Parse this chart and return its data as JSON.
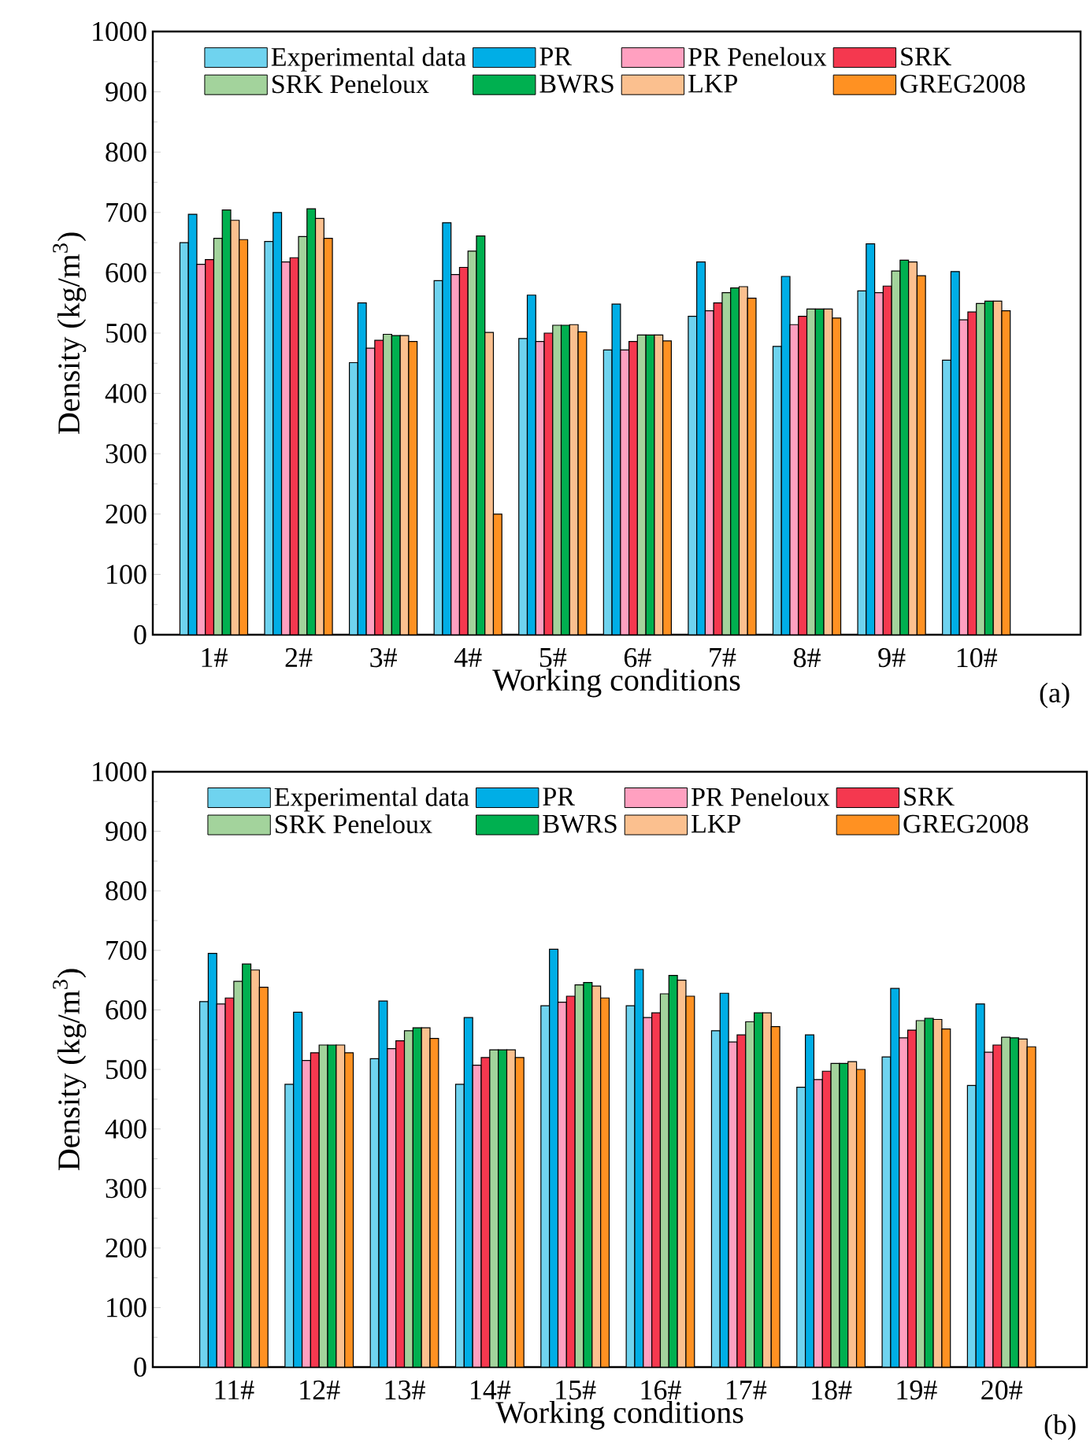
{
  "chart_data": [
    {
      "type": "bar",
      "xlabel": "Working conditions",
      "ylabel": "Density (kg/m$^{3}$)",
      "categories": [
        "1#",
        "2#",
        "3#",
        "4#",
        "5#",
        "6#",
        "7#",
        "8#",
        "9#",
        "10#"
      ],
      "ylim": [
        0,
        1000
      ],
      "yticks": [
        0,
        100,
        200,
        300,
        400,
        500,
        600,
        700,
        800,
        900,
        1000
      ],
      "legend": "top",
      "annotations": [
        "(a)"
      ],
      "series": [
        {
          "name": "Experimental data",
          "color": "#6fd3ef",
          "values": [
            650,
            652,
            451,
            587,
            491,
            472,
            528,
            478,
            570,
            455
          ]
        },
        {
          "name": "PR",
          "color": "#00aee6",
          "values": [
            697,
            700,
            550,
            683,
            563,
            548,
            618,
            594,
            648,
            602
          ]
        },
        {
          "name": "PR Peneloux",
          "color": "#ffa0c0",
          "values": [
            614,
            618,
            475,
            597,
            486,
            472,
            537,
            514,
            567,
            522
          ]
        },
        {
          "name": "SRK",
          "color": "#f5384f",
          "values": [
            622,
            625,
            488,
            609,
            500,
            486,
            550,
            528,
            578,
            535
          ]
        },
        {
          "name": "SRK Peneloux",
          "color": "#a3d39c",
          "values": [
            657,
            660,
            498,
            636,
            513,
            497,
            567,
            540,
            603,
            549
          ]
        },
        {
          "name": "BWRS",
          "color": "#00b050",
          "values": [
            704,
            706,
            496,
            661,
            513,
            497,
            575,
            540,
            621,
            553
          ]
        },
        {
          "name": "LKP",
          "color": "#fbc08f",
          "values": [
            687,
            690,
            496,
            501,
            514,
            497,
            577,
            540,
            618,
            553
          ]
        },
        {
          "name": "GREG2008",
          "color": "#ff9122",
          "values": [
            655,
            657,
            486,
            200,
            502,
            487,
            558,
            525,
            595,
            537
          ]
        }
      ]
    },
    {
      "type": "bar",
      "xlabel": "Working conditions",
      "ylabel": "Density (kg/m$^{3}$)",
      "categories": [
        "11#",
        "12#",
        "13#",
        "14#",
        "15#",
        "16#",
        "17#",
        "18#",
        "19#",
        "20#"
      ],
      "ylim": [
        0,
        1000
      ],
      "yticks": [
        0,
        100,
        200,
        300,
        400,
        500,
        600,
        700,
        800,
        900,
        1000
      ],
      "legend": "top",
      "annotations": [
        "(b)"
      ],
      "series": [
        {
          "name": "Experimental data",
          "color": "#6fd3ef",
          "values": [
            614,
            475,
            518,
            475,
            607,
            607,
            565,
            470,
            521,
            473
          ]
        },
        {
          "name": "PR",
          "color": "#00aee6",
          "values": [
            695,
            596,
            615,
            587,
            702,
            668,
            628,
            558,
            636,
            610
          ]
        },
        {
          "name": "PR Peneloux",
          "color": "#ffa0c0",
          "values": [
            610,
            515,
            535,
            507,
            613,
            587,
            546,
            483,
            553,
            529
          ]
        },
        {
          "name": "SRK",
          "color": "#f5384f",
          "values": [
            620,
            528,
            548,
            520,
            623,
            595,
            558,
            497,
            566,
            541
          ]
        },
        {
          "name": "SRK Peneloux",
          "color": "#a3d39c",
          "values": [
            648,
            541,
            565,
            533,
            642,
            627,
            580,
            510,
            582,
            554
          ]
        },
        {
          "name": "BWRS",
          "color": "#00b050",
          "values": [
            677,
            541,
            570,
            533,
            646,
            658,
            595,
            510,
            586,
            553
          ]
        },
        {
          "name": "LKP",
          "color": "#fbc08f",
          "values": [
            667,
            541,
            570,
            533,
            640,
            650,
            595,
            513,
            584,
            551
          ]
        },
        {
          "name": "GREG2008",
          "color": "#ff9122",
          "values": [
            638,
            528,
            552,
            520,
            620,
            623,
            572,
            500,
            568,
            538
          ]
        }
      ]
    }
  ]
}
